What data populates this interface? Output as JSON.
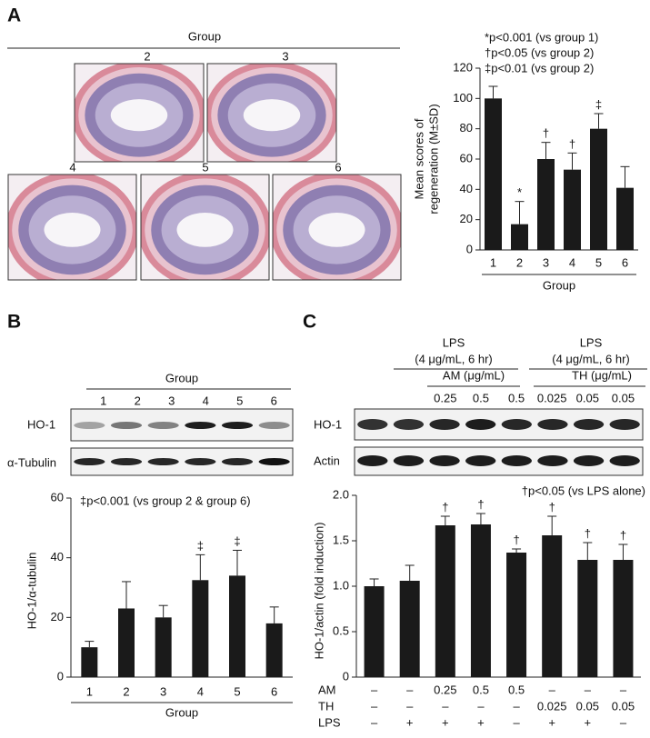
{
  "panel_labels": [
    "A",
    "B",
    "C"
  ],
  "histology": {
    "title": "Group",
    "labels": [
      "2",
      "3",
      "4",
      "5",
      "6"
    ]
  },
  "blot_b": {
    "title": "Group",
    "lanes": [
      "1",
      "2",
      "3",
      "4",
      "5",
      "6"
    ],
    "rows": [
      "HO-1",
      "α-Tubulin"
    ]
  },
  "blot_c": {
    "conditions": [
      {
        "label": "LPS",
        "sublabel": "(4 μg/mL, 6 hr)",
        "agent": "AM (μg/mL)"
      },
      {
        "label": "LPS",
        "sublabel": "(4 μg/mL, 6 hr)",
        "agent": "TH (μg/mL)"
      }
    ],
    "rows": [
      "HO-1",
      "Actin"
    ]
  },
  "chart_data": [
    {
      "type": "bar",
      "ylabel": [
        "Mean scores of",
        "regeneration (M±SD)"
      ],
      "xlabel": "Group",
      "notes": [
        "*p<0.001 (vs group 1)",
        "†p<0.05 (vs group 2)",
        "‡p<0.01 (vs group 2)"
      ],
      "categories": [
        "1",
        "2",
        "3",
        "4",
        "5",
        "6"
      ],
      "values": [
        100,
        17,
        60,
        53,
        80,
        41
      ],
      "errors": [
        8,
        15,
        11,
        11,
        10,
        14
      ],
      "annotations": [
        null,
        "*",
        "†",
        "†",
        "‡",
        null
      ],
      "color": "#1a1a1a",
      "ylim": [
        0,
        120
      ],
      "yticks": [
        0,
        20,
        40,
        60,
        80,
        100,
        120
      ]
    },
    {
      "type": "bar",
      "ylabel": "HO-1/α-tubulin",
      "xlabel": "Group",
      "notes": [
        "‡p<0.001 (vs group 2 & group 6)"
      ],
      "categories": [
        "1",
        "2",
        "3",
        "4",
        "5",
        "6"
      ],
      "values": [
        10,
        23,
        20,
        32.5,
        34,
        18
      ],
      "errors": [
        2,
        9,
        4,
        8.5,
        8.5,
        5.5
      ],
      "annotations": [
        null,
        null,
        null,
        "‡",
        "‡",
        null
      ],
      "color": "#1a1a1a",
      "ylim": [
        0,
        60
      ],
      "yticks": [
        0,
        20,
        40,
        60
      ]
    },
    {
      "type": "bar",
      "ylabel": "HO-1/actin (fold induction)",
      "notes": [
        "†p<0.05 (vs LPS alone)"
      ],
      "values": [
        1.0,
        1.06,
        1.67,
        1.68,
        1.37,
        1.56,
        1.29,
        1.29
      ],
      "errors": [
        0.08,
        0.17,
        0.1,
        0.12,
        0.04,
        0.21,
        0.19,
        0.17
      ],
      "annotations": [
        null,
        null,
        "†",
        "†",
        "†",
        "†",
        "†",
        "†"
      ],
      "treatments": [
        {
          "name": "AM",
          "values": [
            "–",
            "–",
            "0.25",
            "0.5",
            "0.5",
            "–",
            "–",
            "–"
          ]
        },
        {
          "name": "TH",
          "values": [
            "–",
            "–",
            "–",
            "–",
            "–",
            "0.025",
            "0.05",
            "0.05"
          ]
        },
        {
          "name": "LPS",
          "values": [
            "–",
            "+",
            "+",
            "+",
            "–",
            "+",
            "+",
            "–"
          ]
        }
      ],
      "color": "#1a1a1a",
      "ylim": [
        0,
        2.0
      ],
      "yticks": [
        0,
        0.5,
        {
          "value": 1.0,
          "label": "1.0"
        },
        1.5,
        {
          "value": 2.0,
          "label": "2.0"
        }
      ]
    }
  ]
}
